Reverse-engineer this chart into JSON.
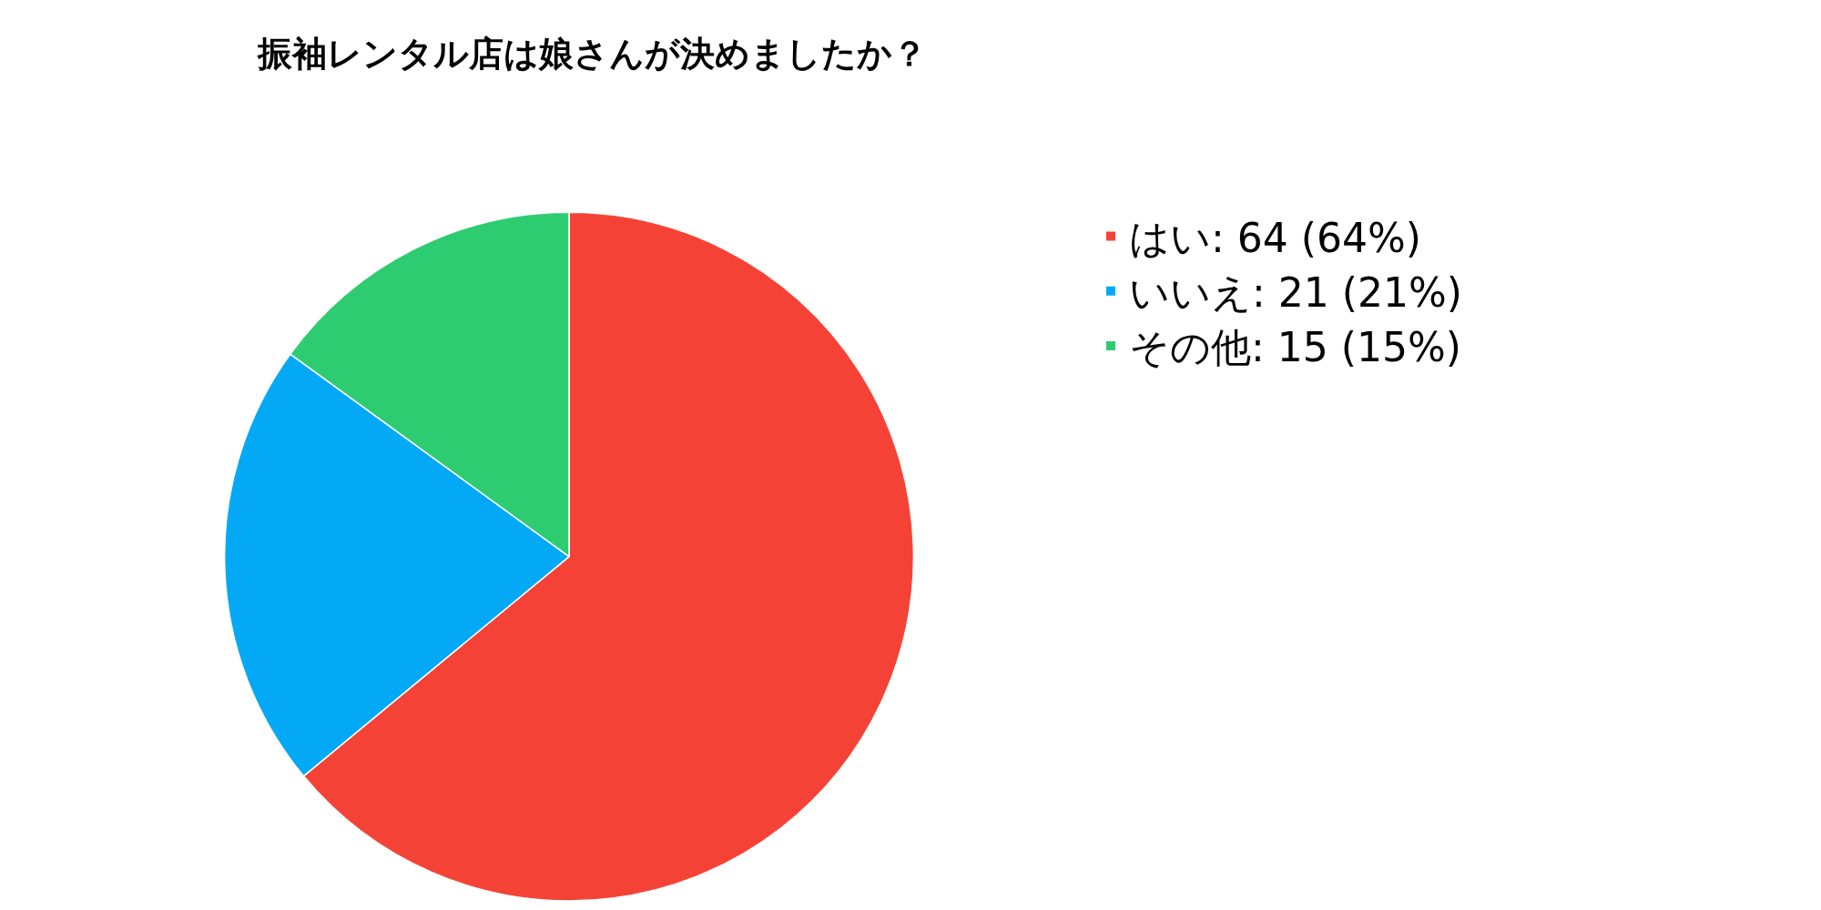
{
  "chart_data": {
    "type": "pie",
    "title": "振袖レンタル店は娘さんが決めましたか？",
    "categories": [
      "はい",
      "いいえ",
      "その他"
    ],
    "values": [
      64,
      21,
      15
    ],
    "value_labels": [
      "64 (64%)",
      "21 (21%)",
      "15 (15%)"
    ],
    "colors": [
      "#f44336",
      "#03a9f4",
      "#2ecc71"
    ],
    "legend": "top right"
  }
}
